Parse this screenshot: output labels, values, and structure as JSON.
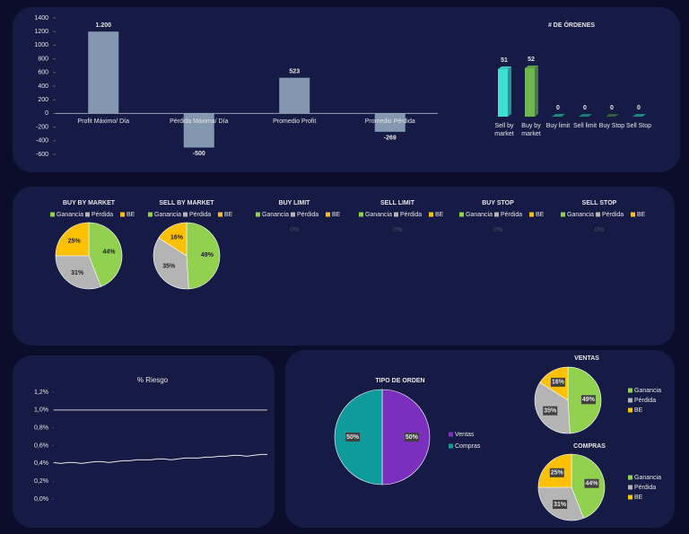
{
  "chart_data": [
    {
      "type": "bar",
      "categories": [
        "Profit Máximo/ Día",
        "Pérdida Máxima/ Día",
        "Promedio Profit",
        "Promedio Pérdida"
      ],
      "values": [
        1200,
        -500,
        523,
        -269
      ],
      "value_labels": [
        "1.200",
        "-500",
        "523",
        "-269"
      ],
      "color": "#8497b0",
      "ylim": [
        -600,
        1400
      ],
      "yticks": [
        -600,
        -400,
        -200,
        0,
        200,
        400,
        600,
        800,
        1000,
        1200,
        1400
      ]
    },
    {
      "type": "bar",
      "title": "# DE ÓRDENES",
      "categories": [
        "Sell by market",
        "Buy by market",
        "Buy limit",
        "Sell limit",
        "Buy Stop",
        "Sell Stop"
      ],
      "values": [
        51,
        52,
        0,
        0,
        0,
        0
      ],
      "colors": [
        "#3ee0d2",
        "#6cb84a",
        "#1f9c86",
        "#1d8c7c",
        "#2d6e3c",
        "#1f9a8c"
      ]
    },
    {
      "type": "pie",
      "title": "BUY BY MARKET",
      "categories": [
        "Ganancia",
        "Pérdida",
        "BE"
      ],
      "values": [
        44,
        31,
        25
      ],
      "value_labels": [
        "44%",
        "31%",
        "25%"
      ],
      "colors": [
        "#92d050",
        "#b4b4b4",
        "#ffc000"
      ]
    },
    {
      "type": "pie",
      "title": "SELL BY MARKET",
      "categories": [
        "Ganancia",
        "Pérdida",
        "BE"
      ],
      "values": [
        49,
        35,
        16
      ],
      "value_labels": [
        "49%",
        "35%",
        "16%"
      ],
      "colors": [
        "#92d050",
        "#b4b4b4",
        "#ffc000"
      ]
    },
    {
      "type": "pie",
      "title": "BUY LIMIT",
      "categories": [
        "Ganancia",
        "Pérdida",
        "BE"
      ],
      "values": [
        0,
        0,
        0
      ],
      "value_labels": [
        "0%",
        "0%",
        "0%"
      ],
      "colors": [
        "#92d050",
        "#b4b4b4",
        "#ffc000"
      ]
    },
    {
      "type": "pie",
      "title": "SELL LIMIT",
      "categories": [
        "Ganancia",
        "Pérdida",
        "BE"
      ],
      "values": [
        0,
        0,
        0
      ],
      "value_labels": [
        "0%",
        "0%",
        "0%"
      ],
      "colors": [
        "#92d050",
        "#b4b4b4",
        "#ffc000"
      ]
    },
    {
      "type": "pie",
      "title": "BUY STOP",
      "categories": [
        "Ganancia",
        "Pérdida",
        "BE"
      ],
      "values": [
        0,
        0,
        0
      ],
      "value_labels": [
        "0%",
        "0%",
        "0%"
      ],
      "colors": [
        "#92d050",
        "#b4b4b4",
        "#ffc000"
      ]
    },
    {
      "type": "pie",
      "title": "SELL STOP",
      "categories": [
        "Ganancia",
        "Pérdida",
        "BE"
      ],
      "values": [
        0,
        0,
        0
      ],
      "value_labels": [
        "0%",
        "0%",
        "0%"
      ],
      "colors": [
        "#92d050",
        "#b4b4b4",
        "#ffc000"
      ]
    },
    {
      "type": "line",
      "title": "% Riesgo",
      "ylim": [
        0,
        1.2
      ],
      "yticks": [
        {
          "value": 0,
          "label": "0,0%"
        },
        {
          "value": 0.2,
          "label": "0,2%"
        },
        {
          "value": 0.4,
          "label": "0,4%"
        },
        {
          "value": 0.6,
          "label": "0,6%"
        },
        {
          "value": 0.8,
          "label": "0,8%"
        },
        {
          "value": 1.0,
          "label": "1,0%"
        },
        {
          "value": 1.2,
          "label": "1,2%"
        }
      ],
      "series": [
        {
          "color": "#cfcfcf",
          "values": [
            1.0,
            1.0,
            1.0,
            1.0,
            1.0,
            1.0,
            1.0,
            1.0,
            1.0,
            1.0,
            1.0,
            1.0,
            1.0,
            1.0,
            1.0,
            1.0,
            1.0,
            1.0,
            1.0,
            1.0,
            1.0,
            1.0,
            1.0,
            1.0,
            1.0,
            1.0,
            1.0,
            1.0,
            1.0,
            1.0,
            1.0,
            1.0
          ]
        },
        {
          "color": "#e8e8e8",
          "values": [
            0.41,
            0.4,
            0.41,
            0.41,
            0.4,
            0.41,
            0.42,
            0.42,
            0.41,
            0.42,
            0.43,
            0.43,
            0.44,
            0.44,
            0.44,
            0.45,
            0.45,
            0.44,
            0.45,
            0.46,
            0.46,
            0.46,
            0.47,
            0.47,
            0.48,
            0.48,
            0.49,
            0.49,
            0.48,
            0.49,
            0.5,
            0.5
          ]
        }
      ]
    },
    {
      "type": "pie",
      "title": "TIPO DE ORDEN",
      "categories": [
        "Ventas",
        "Compras"
      ],
      "values": [
        50,
        50
      ],
      "value_labels": [
        "50%",
        "50%"
      ],
      "colors": [
        "#7a30bd",
        "#0f9a9c"
      ]
    },
    {
      "type": "pie",
      "title": "VENTAS",
      "categories": [
        "Ganancia",
        "Pérdida",
        "BE"
      ],
      "values": [
        49,
        35,
        16
      ],
      "value_labels": [
        "49%",
        "35%",
        "16%"
      ],
      "colors": [
        "#92d050",
        "#b4b4b4",
        "#ffc000"
      ]
    },
    {
      "type": "pie",
      "title": "COMPRAS",
      "categories": [
        "Ganancia",
        "Pérdida",
        "BE"
      ],
      "values": [
        44,
        31,
        25
      ],
      "value_labels": [
        "44%",
        "31%",
        "25%"
      ],
      "colors": [
        "#92d050",
        "#b4b4b4",
        "#ffc000"
      ]
    }
  ]
}
